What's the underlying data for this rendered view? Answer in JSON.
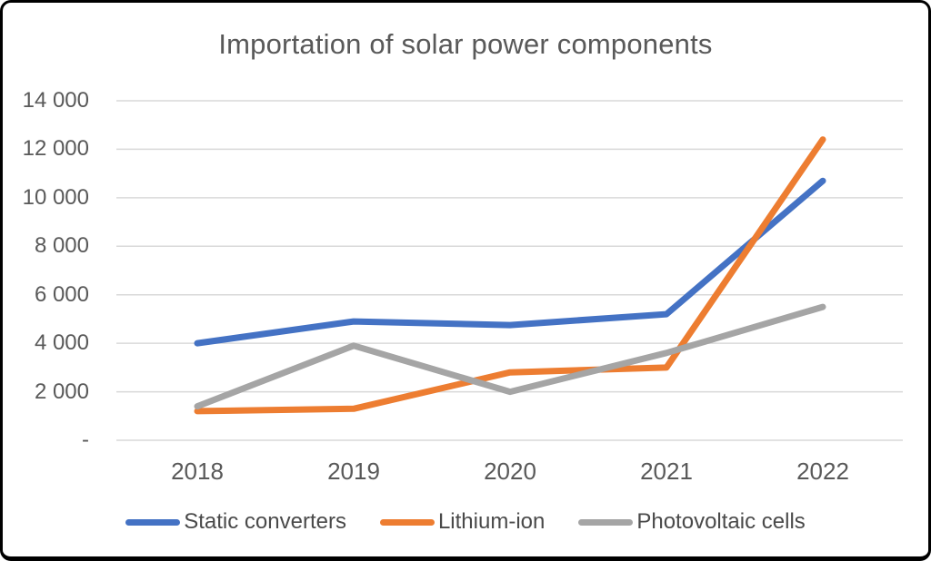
{
  "chart_data": {
    "type": "line",
    "title": "Importation of solar power components",
    "x_labels": [
      "2018",
      "2019",
      "2020",
      "2021",
      "2022"
    ],
    "y_tick_labels": [
      "14 000",
      "12 000",
      "10 000",
      "8 000",
      "6 000",
      "4 000",
      "2 000",
      "-"
    ],
    "y_tick_values": [
      14000,
      12000,
      10000,
      8000,
      6000,
      4000,
      2000,
      0
    ],
    "ylim": [
      0,
      14000
    ],
    "grid": true,
    "legend_position": "bottom",
    "series": [
      {
        "name": "Static converters",
        "color": "#4472C4",
        "values": [
          4000,
          4900,
          4750,
          5200,
          10700
        ]
      },
      {
        "name": "Lithium-ion",
        "color": "#ED7D31",
        "values": [
          1200,
          1300,
          2800,
          3000,
          12400
        ]
      },
      {
        "name": "Photovoltaic cells",
        "color": "#A5A5A5",
        "values": [
          1400,
          3900,
          2000,
          3600,
          5500
        ]
      }
    ],
    "colors": {
      "grid": "#D9D9D9",
      "axis_text": "#595959",
      "legend_text": "#4a4a4a",
      "frame_border": "#000000",
      "background": "#FFFFFF"
    }
  }
}
